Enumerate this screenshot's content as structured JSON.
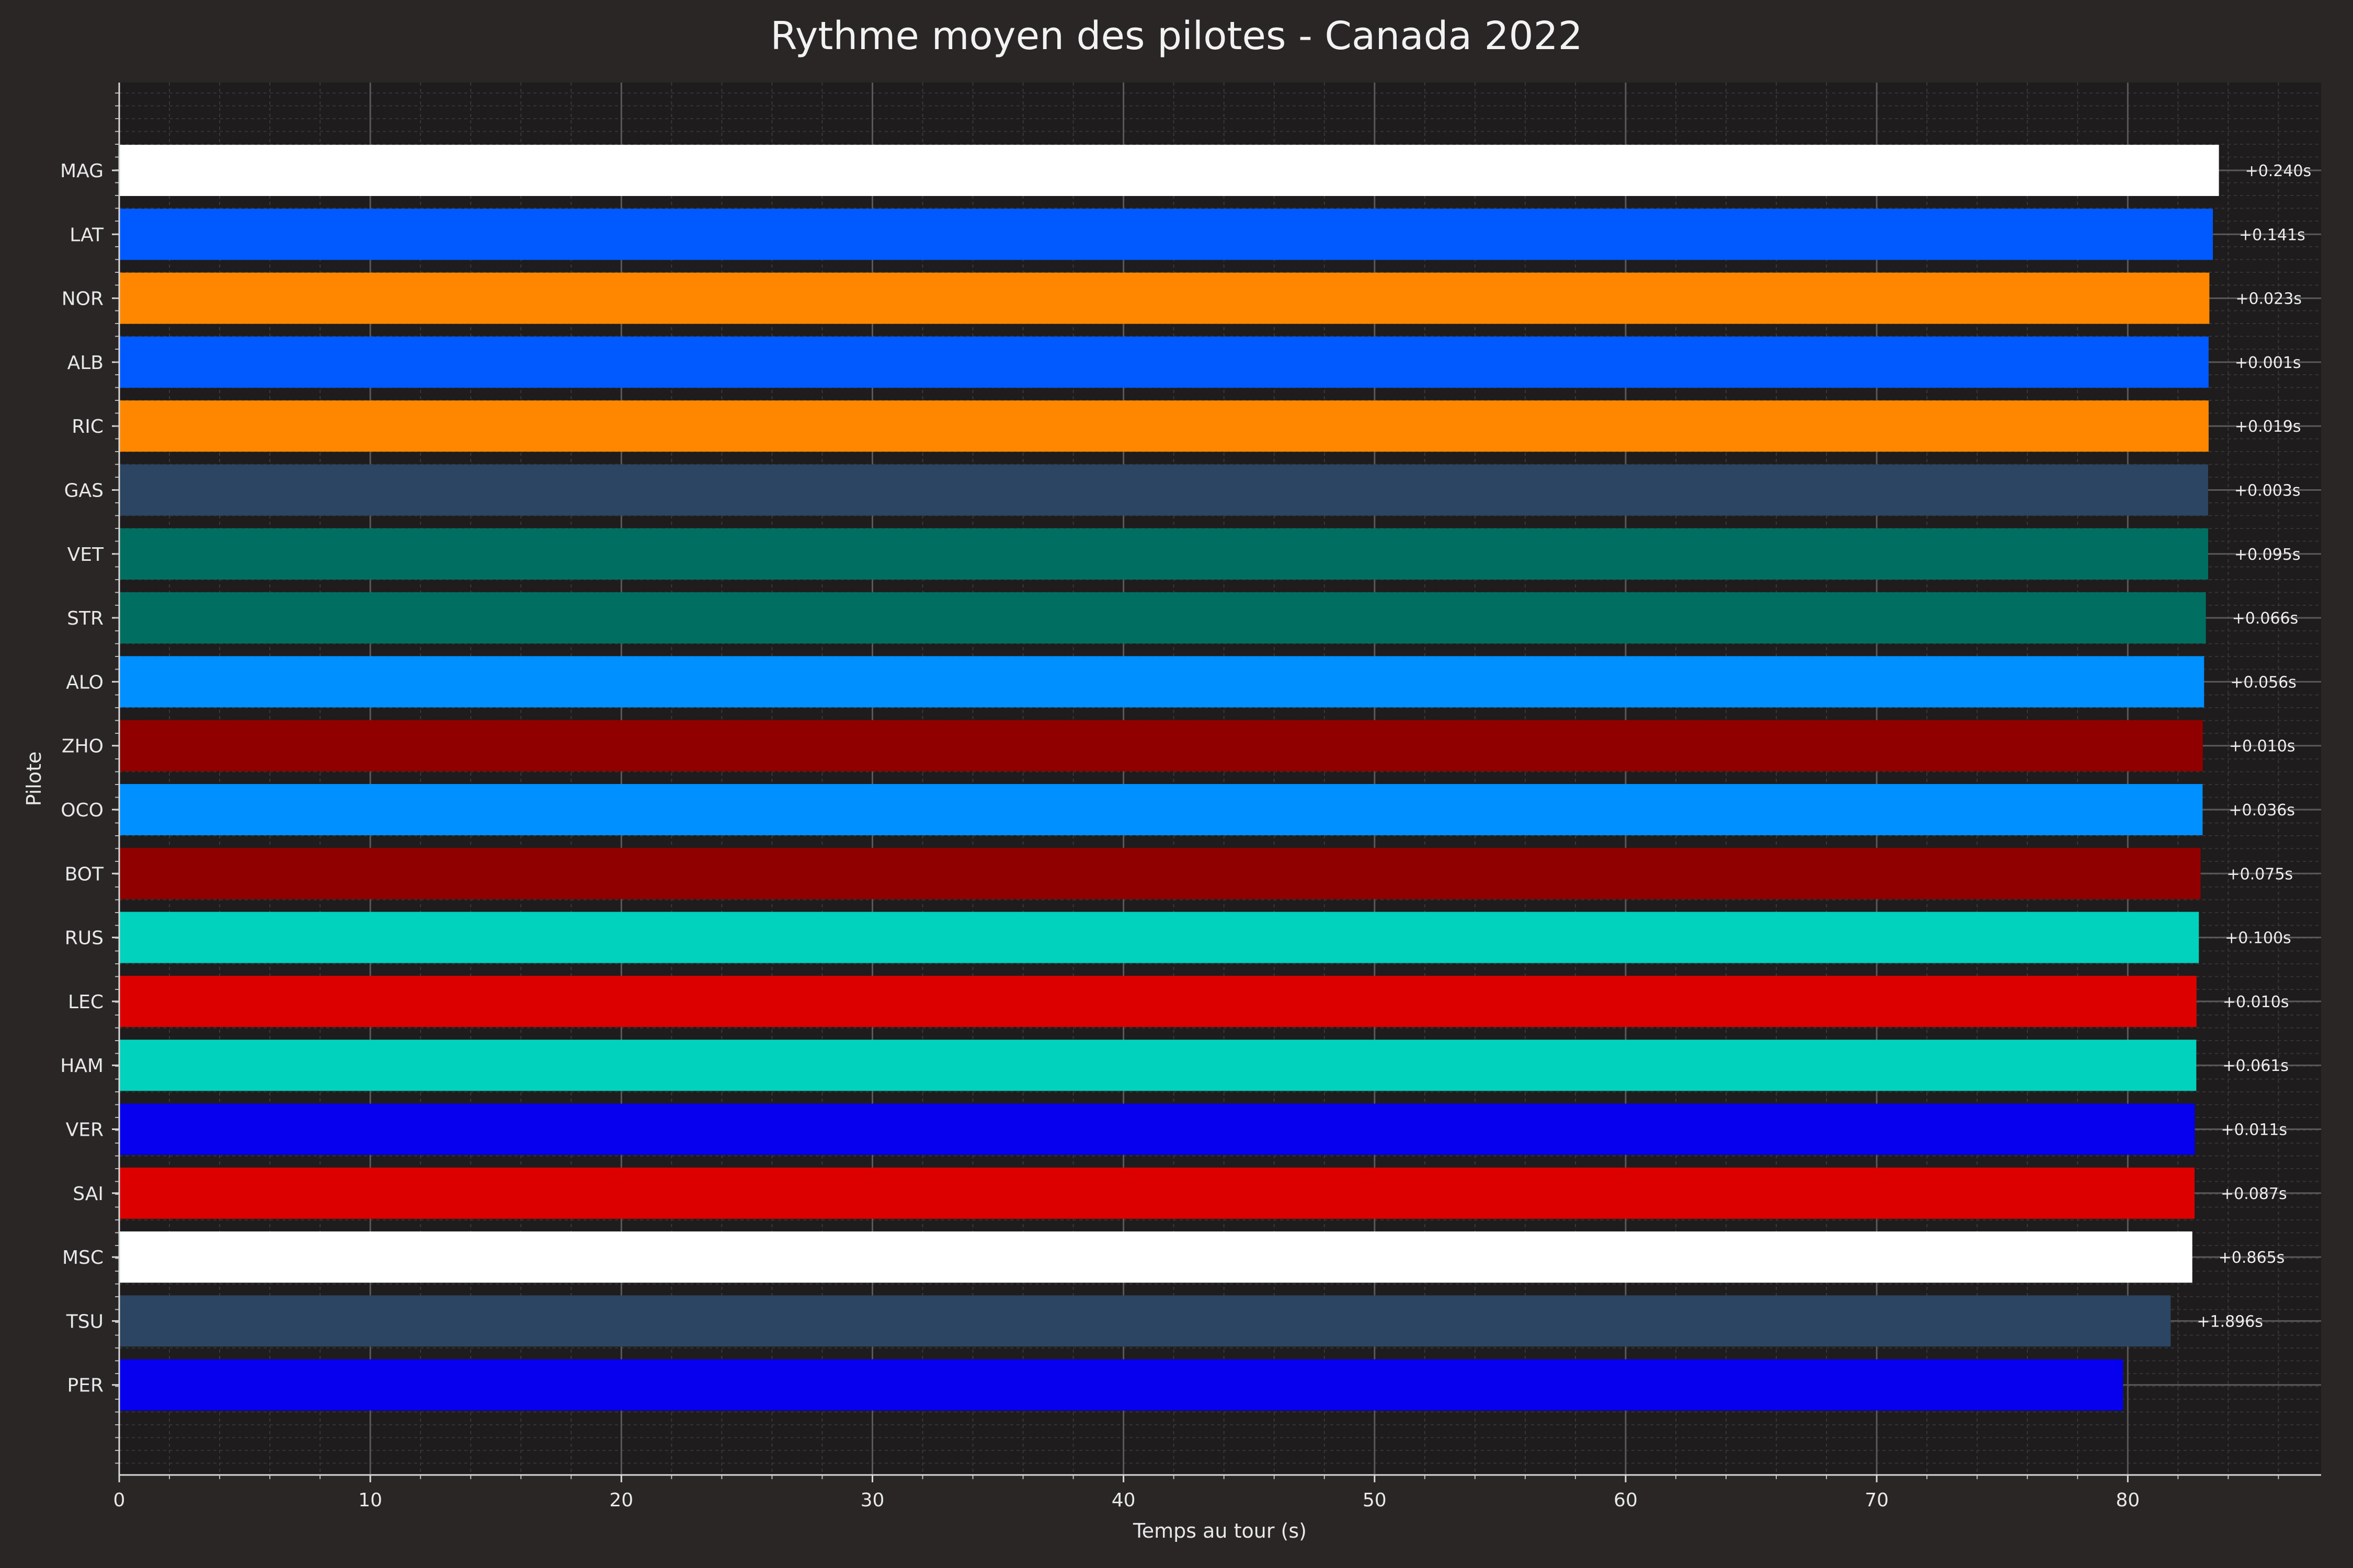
{
  "chart_data": {
    "type": "bar",
    "orientation": "horizontal",
    "title": "Rythme moyen des pilotes - Canada 2022",
    "xlabel": "Temps au tour (s)",
    "ylabel": "Pilote",
    "xlim": [
      0,
      87.7
    ],
    "xticks": [
      0,
      10,
      20,
      30,
      40,
      50,
      60,
      70,
      80
    ],
    "grid": true,
    "legend": "none",
    "categories": [
      "MAG",
      "LAT",
      "NOR",
      "ALB",
      "RIC",
      "GAS",
      "VET",
      "STR",
      "ALO",
      "ZHO",
      "OCO",
      "BOT",
      "RUS",
      "LEC",
      "HAM",
      "VER",
      "SAI",
      "MSC",
      "TSU",
      "PER"
    ],
    "values": [
      83.63,
      83.39,
      83.25,
      83.22,
      83.22,
      83.2,
      83.2,
      83.11,
      83.04,
      82.99,
      82.98,
      82.9,
      82.83,
      82.74,
      82.73,
      82.67,
      82.66,
      82.57,
      81.71,
      79.81
    ],
    "gaps": [
      "+0.240s",
      "+0.141s",
      "+0.023s",
      "+0.001s",
      "+0.019s",
      "+0.003s",
      "+0.095s",
      "+0.066s",
      "+0.056s",
      "+0.010s",
      "+0.036s",
      "+0.075s",
      "+0.100s",
      "+0.010s",
      "+0.061s",
      "+0.011s",
      "+0.087s",
      "+0.865s",
      "+1.896s",
      ""
    ],
    "colors": [
      "#ffffff",
      "#005aff",
      "#ff8700",
      "#005aff",
      "#ff8700",
      "#2b4562",
      "#006f62",
      "#006f62",
      "#0090ff",
      "#900000",
      "#0090ff",
      "#900000",
      "#00d2be",
      "#dc0000",
      "#00d2be",
      "#0600ef",
      "#dc0000",
      "#ffffff",
      "#2b4562",
      "#0600ef"
    ]
  }
}
